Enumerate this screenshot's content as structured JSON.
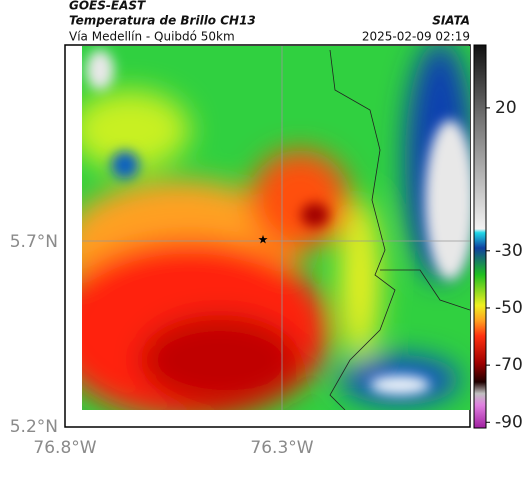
{
  "header": {
    "title": "GOES-EAST",
    "subtitle": "Temperatura de Brillo CH13",
    "region": "Vía Medellín - Quibdó 50km",
    "source": "SIATA",
    "datetime": "2025-02-09 02:19"
  },
  "axes": {
    "lat_labels": [
      "5.7°N",
      "5.2°N"
    ],
    "lon_labels": [
      "76.8°W",
      "76.3°W"
    ]
  },
  "colorbar": {
    "lim": [
      42,
      -92
    ],
    "ticks": [
      20,
      -30,
      -50,
      -70,
      -90
    ]
  }
}
